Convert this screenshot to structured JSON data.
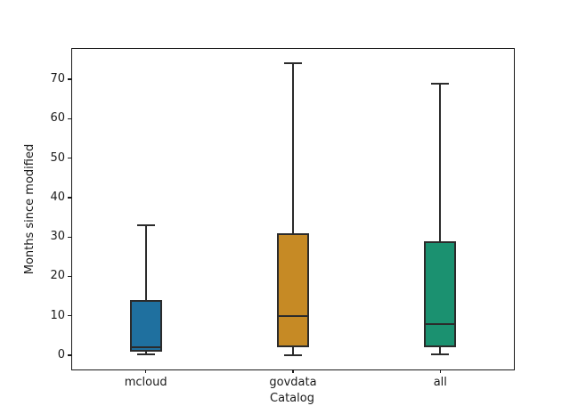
{
  "figure": {
    "background": "#ffffff"
  },
  "chart_data": {
    "type": "boxplot",
    "xlabel": "Catalog",
    "ylabel": "Months since modified",
    "categories": [
      "mcloud",
      "govdata",
      "all"
    ],
    "series": [
      {
        "name": "mcloud",
        "whisker_low": 0.2,
        "q1": 1,
        "median": 2,
        "q3": 14,
        "whisker_high": 33,
        "fill_color": "#1f709f"
      },
      {
        "name": "govdata",
        "whisker_low": 0.1,
        "q1": 2,
        "median": 10,
        "q3": 31,
        "whisker_high": 74,
        "fill_color": "#c68a25"
      },
      {
        "name": "all",
        "whisker_low": 0.2,
        "q1": 2,
        "median": 8,
        "q3": 29,
        "whisker_high": 69,
        "fill_color": "#1b9170"
      }
    ],
    "yticks": [
      0,
      10,
      20,
      30,
      40,
      50,
      60,
      70
    ],
    "ylim": [
      -3.6,
      77.7
    ],
    "grid": false,
    "edge_color": "#2b2b2b",
    "axis_color": "#1a1a1a"
  }
}
